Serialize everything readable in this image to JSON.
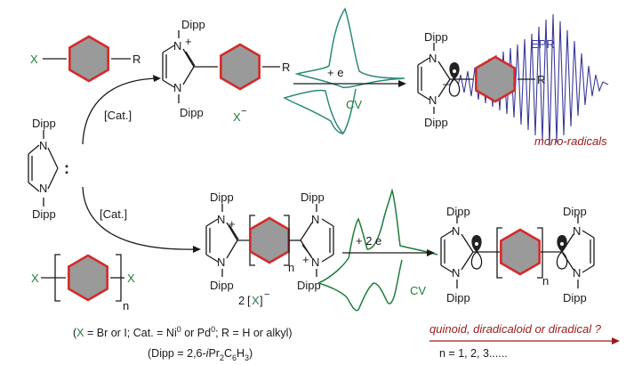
{
  "colors": {
    "ring_fill": "#9a9a9a",
    "ring_stroke": "#d42a2a",
    "green": "#1e7d3a",
    "teal": "#2a8a7a",
    "epr": "#3a3a9a",
    "dark_red": "#9a1a1a",
    "black": "#1a1a1a"
  },
  "labels": {
    "X": "X",
    "R": "R",
    "Dipp": "Dipp",
    "plus": "+",
    "colon": ":",
    "cat": "[Cat.]",
    "x_minus": "X",
    "minus": "−",
    "two": "2",
    "two_x_minus_open": "[",
    "two_x_minus_close": "]",
    "n": "n",
    "plus_e": "+ e",
    "plus_2e": "+ 2 e",
    "cv": "CV",
    "epr": "EPR",
    "mono_radicals": "mono-radicals"
  },
  "footnote": {
    "line1_part1": "(",
    "line1_X": "X",
    "line1_part2": " = Br or I; Cat. = Ni",
    "sup0a": "0",
    "line1_part3": " or Pd",
    "sup0b": "0",
    "line1_part4": "; R = H or alkyl)",
    "line2_part1": "(Dipp = 2,6-",
    "line2_italic": "i",
    "line2_part2": "Pr",
    "sub2": "2",
    "line2_part3": "C",
    "sub6": "6",
    "line2_part4": "H",
    "sub3": "3",
    "line2_part5": ")"
  },
  "right_caption": {
    "question": "quinoid, diradicaloid or diradical ?",
    "n_values": "n = 1, 2, 3......"
  }
}
